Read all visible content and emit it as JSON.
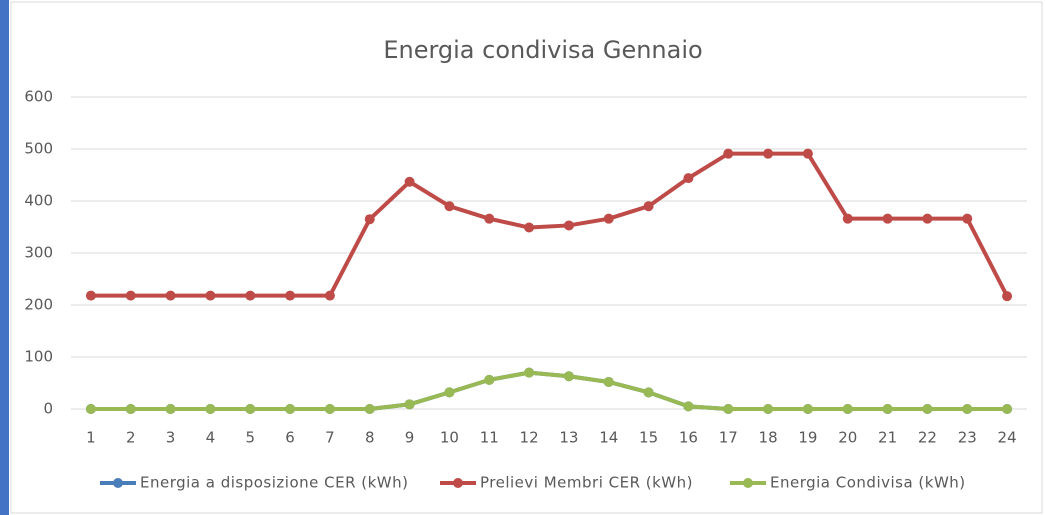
{
  "chart_data": {
    "type": "line",
    "title": "Energia condivisa Gennaio",
    "categories": [
      "1",
      "2",
      "3",
      "4",
      "5",
      "6",
      "7",
      "8",
      "9",
      "10",
      "11",
      "12",
      "13",
      "14",
      "15",
      "16",
      "17",
      "18",
      "19",
      "20",
      "21",
      "22",
      "23",
      "24"
    ],
    "series": [
      {
        "name": "Energia a disposizione CER (kWh)",
        "color": "#4a7ebb",
        "values": [
          0,
          0,
          0,
          0,
          0,
          0,
          0,
          0,
          9,
          32,
          56,
          70,
          63,
          52,
          32,
          5,
          0,
          0,
          0,
          0,
          0,
          0,
          0,
          0
        ]
      },
      {
        "name": "Prelievi Membri CER (kWh)",
        "color": "#be4b48",
        "values": [
          218,
          218,
          218,
          218,
          218,
          218,
          218,
          365,
          437,
          390,
          366,
          349,
          353,
          366,
          390,
          444,
          491,
          491,
          491,
          366,
          366,
          366,
          366,
          217
        ]
      },
      {
        "name": "Energia Condivisa (kWh)",
        "color": "#98b954",
        "values": [
          0,
          0,
          0,
          0,
          0,
          0,
          0,
          0,
          9,
          32,
          56,
          70,
          63,
          52,
          32,
          5,
          0,
          0,
          0,
          0,
          0,
          0,
          0,
          0
        ]
      }
    ],
    "ylim": [
      0,
      600
    ],
    "yticks": [
      0,
      100,
      200,
      300,
      400,
      500,
      600
    ],
    "grid": true,
    "legend": "bottom"
  }
}
